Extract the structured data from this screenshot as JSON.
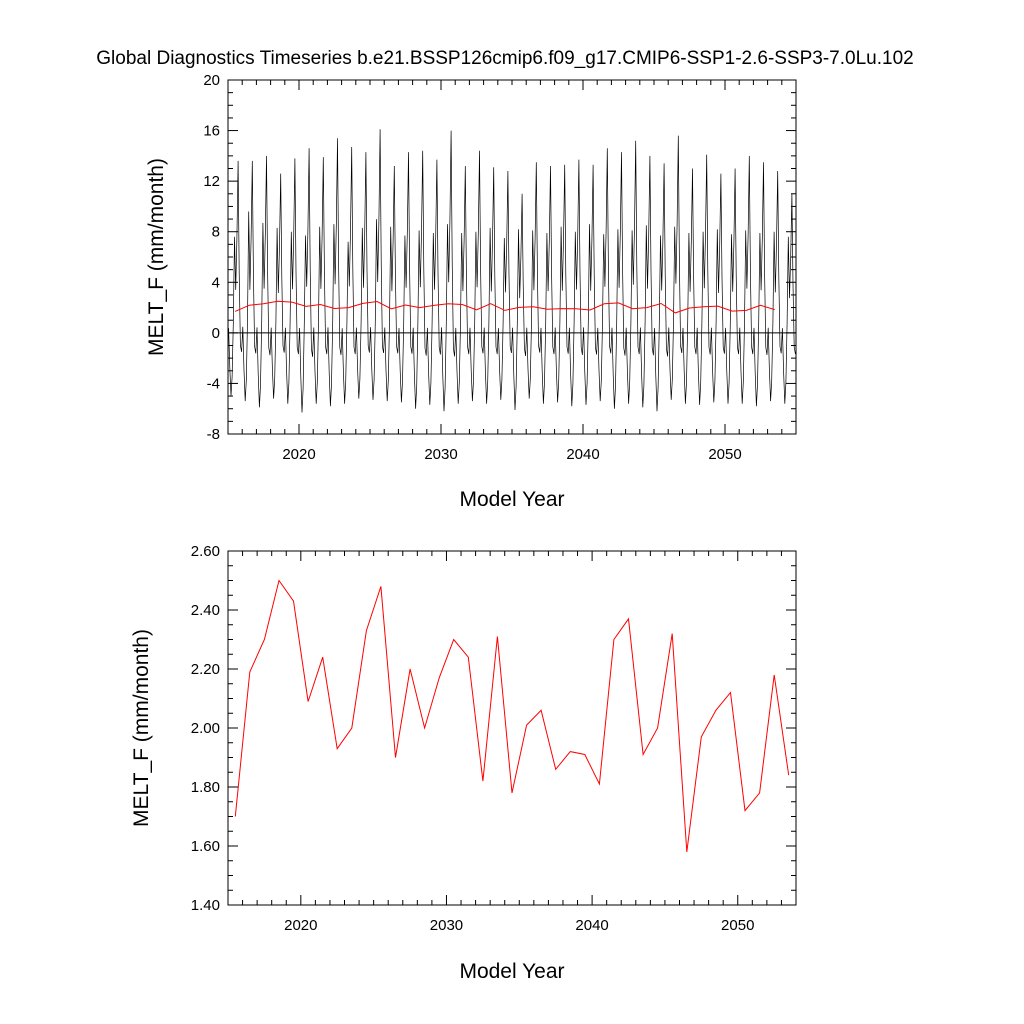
{
  "figure": {
    "title": "Global Diagnostics Timeseries b.e21.BSSP126cmip6.f09_g17.CMIP6-SSP1-2.6-SSP3-7.0Lu.102"
  },
  "colors": {
    "monthly_line": "#000000",
    "annual_line": "#ff0000",
    "background": "#ffffff"
  },
  "chart_data": [
    {
      "type": "line",
      "title": "Global Diagnostics Timeseries b.e21.BSSP126cmip6.f09_g17.CMIP6-SSP1-2.6-SSP3-7.0Lu.102",
      "xlabel": "Model Year",
      "ylabel": "MELT_F (mm/month)",
      "xlim": [
        2015,
        2055
      ],
      "ylim": [
        -8,
        20
      ],
      "xticks": [
        2020,
        2030,
        2040,
        2050
      ],
      "xtick_labels": [
        "2020",
        "2030",
        "2040",
        "2050"
      ],
      "yticks": [
        -8,
        -4,
        0,
        4,
        8,
        12,
        16,
        20
      ],
      "ytick_labels": [
        "-8",
        "-4",
        "0",
        "4",
        "8",
        "12",
        "16",
        "20"
      ],
      "zero_line": true,
      "grid": false,
      "monthly_cycle": {
        "description_note": "seasonal cycle: large positive peak then negative trough each year",
        "start_year": 2015,
        "end_year": 2055,
        "annual_peaks": [
          13.6,
          13.6,
          14.0,
          12.6,
          13.8,
          14.6,
          13.9,
          15.4,
          14.7,
          14.3,
          16.1,
          13.2,
          14.3,
          14.4,
          13.7,
          16.0,
          13.2,
          14.4,
          13.1,
          12.8,
          11.0,
          13.5,
          13.2,
          13.3,
          13.7,
          13.3,
          14.6,
          14.3,
          15.2,
          14.0,
          13.4,
          15.6,
          13.0,
          14.1,
          12.6,
          13.0,
          14.0,
          13.5,
          12.8,
          11.0
        ],
        "annual_troughs": [
          -5.0,
          -5.4,
          -5.9,
          -5.2,
          -5.6,
          -6.3,
          -5.6,
          -5.8,
          -5.6,
          -5.2,
          -5.3,
          -5.4,
          -5.5,
          -6.0,
          -5.7,
          -6.2,
          -5.6,
          -5.4,
          -5.6,
          -5.3,
          -6.1,
          -5.2,
          -5.6,
          -5.5,
          -5.8,
          -5.7,
          -5.4,
          -6.0,
          -5.6,
          -5.9,
          -6.2,
          -5.3,
          -5.6,
          -5.7,
          -5.5,
          -5.6,
          -5.6,
          -5.8,
          -5.4,
          -5.6
        ],
        "secondary_peaks": [
          7.6,
          9.6,
          8.7,
          8.3,
          8.0,
          7.7,
          8.4,
          8.6,
          7.2,
          8.3,
          9.0,
          8.4,
          7.7,
          8.1,
          7.9,
          8.6,
          7.9,
          8.0,
          8.3,
          7.5,
          8.2,
          8.1,
          7.9,
          8.4,
          8.0,
          8.6,
          7.8,
          8.2,
          8.1,
          8.5,
          7.7,
          8.4,
          7.9,
          8.0,
          8.2,
          7.8,
          8.1,
          7.9,
          8.0,
          7.6
        ]
      },
      "series": [
        {
          "values_ref": "annual_mean"
        }
      ]
    },
    {
      "type": "line",
      "xlabel": "Model Year",
      "ylabel": "MELT_F (mm/month)",
      "xlim": [
        2015,
        2054
      ],
      "ylim": [
        1.4,
        2.6
      ],
      "xticks": [
        2020,
        2030,
        2040,
        2050
      ],
      "xtick_labels": [
        "2020",
        "2030",
        "2040",
        "2050"
      ],
      "yticks": [
        1.4,
        1.6,
        1.8,
        2.0,
        2.2,
        2.4,
        2.6
      ],
      "ytick_labels": [
        "1.40",
        "1.60",
        "1.80",
        "2.00",
        "2.20",
        "2.40",
        "2.60"
      ],
      "grid": false,
      "x": [
        2015.5,
        2016.5,
        2017.5,
        2018.5,
        2019.5,
        2020.5,
        2021.5,
        2022.5,
        2023.5,
        2024.5,
        2025.5,
        2026.5,
        2027.5,
        2028.5,
        2029.5,
        2030.5,
        2031.5,
        2032.5,
        2033.5,
        2034.5,
        2035.5,
        2036.5,
        2037.5,
        2038.5,
        2039.5,
        2040.5,
        2041.5,
        2042.5,
        2043.5,
        2044.5,
        2045.5,
        2046.5,
        2047.5,
        2048.5,
        2049.5,
        2050.5,
        2051.5,
        2052.5,
        2053.5
      ],
      "values": [
        1.7,
        2.19,
        2.3,
        2.5,
        2.43,
        2.09,
        2.24,
        1.93,
        2.0,
        2.33,
        2.48,
        1.9,
        2.2,
        2.0,
        2.17,
        2.3,
        2.24,
        1.82,
        2.31,
        1.78,
        2.01,
        2.06,
        1.86,
        1.92,
        1.91,
        1.81,
        2.3,
        2.37,
        1.91,
        2.0,
        2.32,
        1.58,
        1.97,
        2.06,
        2.12,
        1.72,
        1.78,
        2.18,
        1.84
      ]
    }
  ]
}
